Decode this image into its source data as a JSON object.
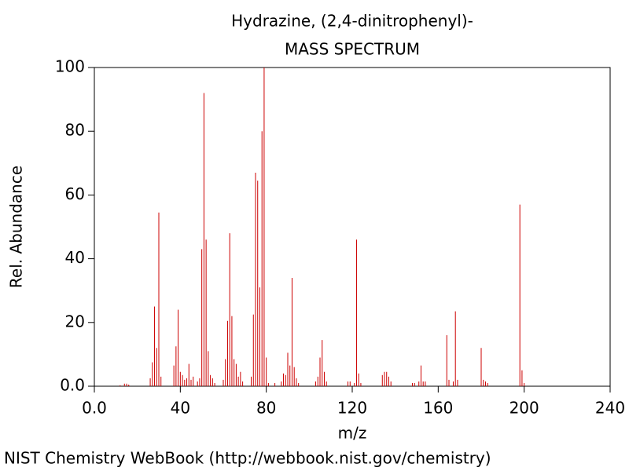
{
  "chart_data": {
    "type": "bar",
    "title": "Hydrazine, (2,4-dinitrophenyl)-",
    "subtitle": "MASS SPECTRUM",
    "x_label": "m/z",
    "y_label": "Rel. Abundance",
    "footer": "NIST Chemistry WebBook (http://webbook.nist.gov/chemistry)",
    "color": "#cc0000",
    "xlim": [
      0,
      240
    ],
    "ylim": [
      0,
      100
    ],
    "xticks": [
      {
        "value": 0,
        "label": "0.0"
      },
      40,
      80,
      120,
      160,
      200,
      240
    ],
    "yticks": [
      {
        "value": 0,
        "label": "0.0"
      },
      20,
      40,
      60,
      80,
      100
    ],
    "x": [
      12,
      14,
      15,
      16,
      26,
      27,
      28,
      29,
      30,
      31,
      37,
      38,
      39,
      40,
      41,
      42,
      43,
      44,
      45,
      46,
      48,
      49,
      50,
      51,
      52,
      53,
      54,
      55,
      56,
      60,
      61,
      62,
      63,
      64,
      65,
      66,
      67,
      68,
      69,
      73,
      74,
      75,
      76,
      77,
      78,
      79,
      80,
      81,
      84,
      87,
      88,
      89,
      90,
      91,
      92,
      93,
      94,
      95,
      103,
      104,
      105,
      106,
      107,
      108,
      118,
      119,
      121,
      122,
      123,
      124,
      134,
      135,
      136,
      137,
      138,
      148,
      149,
      151,
      152,
      153,
      154,
      164,
      165,
      167,
      168,
      169,
      180,
      181,
      182,
      183,
      198,
      199,
      200
    ],
    "values": [
      0.3,
      0.8,
      0.8,
      0.5,
      2.5,
      7.5,
      25,
      12,
      54.5,
      3,
      6.5,
      12.5,
      24,
      4.5,
      3.5,
      2,
      2.5,
      7,
      2,
      3,
      1.5,
      2.5,
      43,
      92,
      46,
      11,
      3.5,
      2.5,
      1,
      2,
      8.5,
      20.5,
      48,
      22,
      8.5,
      7,
      3,
      4.5,
      1.5,
      3,
      22.5,
      67,
      64.5,
      31,
      80,
      100,
      9,
      1,
      1,
      1.5,
      4,
      3.5,
      10.5,
      6.5,
      34,
      6,
      2.5,
      1,
      1.5,
      3,
      9,
      14.5,
      4.5,
      1.5,
      1.5,
      1.5,
      1,
      46,
      4,
      1,
      3.5,
      4.5,
      4.5,
      3,
      1.5,
      1,
      1,
      1.5,
      6.5,
      1.5,
      1.5,
      16,
      2,
      1.5,
      23.5,
      2,
      12,
      2,
      1.5,
      1,
      57,
      5,
      1
    ]
  }
}
